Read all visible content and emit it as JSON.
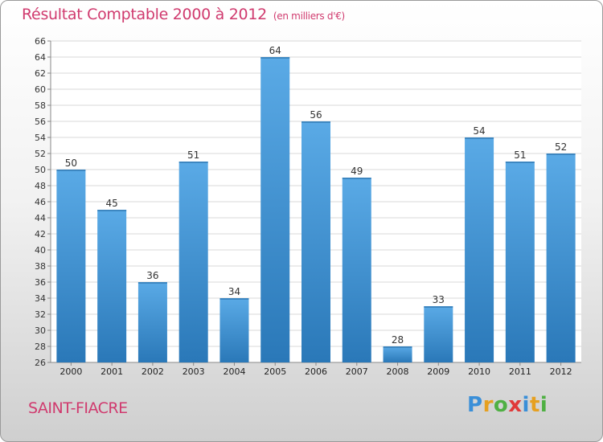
{
  "header": {
    "title": "Résultat Comptable 2000 à 2012",
    "unit": "(en milliers d'€)"
  },
  "footer": {
    "commune": "SAINT-FIACRE",
    "logo_letters": [
      "P",
      "r",
      "o",
      "x",
      "i",
      "t",
      "i"
    ]
  },
  "colors": {
    "title": "#d03a6e",
    "bar_top": "#5aaae6",
    "bar_bottom": "#2a78b8",
    "logo": [
      "#3a8fd8",
      "#e6a020",
      "#4fb043",
      "#e03a3a",
      "#3a8fd8",
      "#e6a020",
      "#4fb043"
    ]
  },
  "chart_data": {
    "type": "bar",
    "title": "Résultat Comptable 2000 à 2012",
    "subtitle": "(en milliers d'€)",
    "xlabel": "",
    "ylabel": "",
    "categories": [
      "2000",
      "2001",
      "2002",
      "2003",
      "2004",
      "2005",
      "2006",
      "2007",
      "2008",
      "2009",
      "2010",
      "2011",
      "2012"
    ],
    "values": [
      50,
      45,
      36,
      51,
      34,
      64,
      56,
      49,
      28,
      33,
      54,
      51,
      52
    ],
    "ylim": [
      26,
      66
    ],
    "ytick_step": 2,
    "grid": true,
    "data_labels": true
  }
}
